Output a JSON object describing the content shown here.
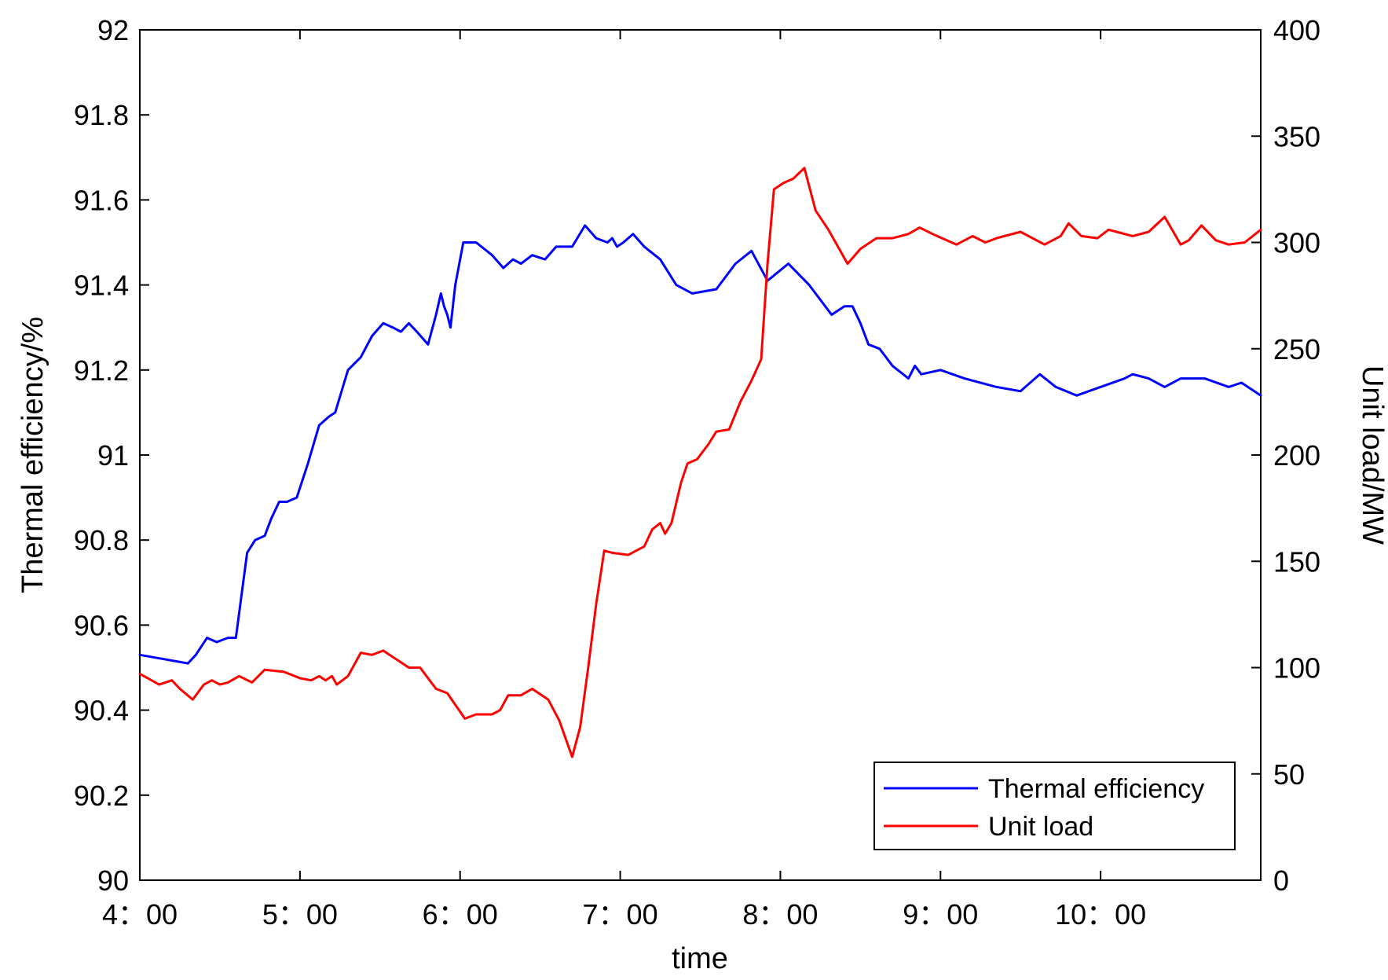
{
  "chart_data": {
    "type": "line",
    "xlabel": "time",
    "ylabel_left": "Thermal efficiency/%",
    "ylabel_right": "Unit load/MW",
    "xlim": [
      4.0,
      11.0
    ],
    "ylim_left": [
      90,
      92
    ],
    "ylim_right": [
      0,
      400
    ],
    "x_ticks": [
      4,
      5,
      6,
      7,
      8,
      9,
      10
    ],
    "x_tick_labels": [
      "4：00",
      "5：00",
      "6：00",
      "7：00",
      "8：00",
      "9：00",
      "10：00"
    ],
    "y_left_ticks": [
      90,
      90.2,
      90.4,
      90.6,
      90.8,
      91,
      91.2,
      91.4,
      91.6,
      91.8,
      92
    ],
    "y_left_tick_labels": [
      "90",
      "90.2",
      "90.4",
      "90.6",
      "90.8",
      "91",
      "91.2",
      "91.4",
      "91.6",
      "91.8",
      "92"
    ],
    "y_right_ticks": [
      0,
      50,
      100,
      150,
      200,
      250,
      300,
      350,
      400
    ],
    "y_right_tick_labels": [
      "0",
      "50",
      "100",
      "150",
      "200",
      "250",
      "300",
      "350",
      "400"
    ],
    "grid": false,
    "legend_position": "bottom-right",
    "series": [
      {
        "name": "Thermal efficiency",
        "axis": "left",
        "color": "#0000ff",
        "points": [
          [
            4.0,
            90.53
          ],
          [
            4.15,
            90.52
          ],
          [
            4.3,
            90.51
          ],
          [
            4.35,
            90.53
          ],
          [
            4.42,
            90.57
          ],
          [
            4.48,
            90.56
          ],
          [
            4.55,
            90.57
          ],
          [
            4.6,
            90.57
          ],
          [
            4.67,
            90.77
          ],
          [
            4.72,
            90.8
          ],
          [
            4.78,
            90.81
          ],
          [
            4.82,
            90.85
          ],
          [
            4.87,
            90.89
          ],
          [
            4.92,
            90.89
          ],
          [
            4.98,
            90.9
          ],
          [
            5.05,
            90.98
          ],
          [
            5.12,
            91.07
          ],
          [
            5.18,
            91.09
          ],
          [
            5.22,
            91.1
          ],
          [
            5.3,
            91.2
          ],
          [
            5.38,
            91.23
          ],
          [
            5.45,
            91.28
          ],
          [
            5.52,
            91.31
          ],
          [
            5.58,
            91.3
          ],
          [
            5.63,
            91.29
          ],
          [
            5.68,
            91.31
          ],
          [
            5.73,
            91.29
          ],
          [
            5.8,
            91.26
          ],
          [
            5.85,
            91.33
          ],
          [
            5.88,
            91.38
          ],
          [
            5.9,
            91.35
          ],
          [
            5.92,
            91.33
          ],
          [
            5.94,
            91.3
          ],
          [
            5.97,
            91.4
          ],
          [
            6.02,
            91.5
          ],
          [
            6.1,
            91.5
          ],
          [
            6.2,
            91.47
          ],
          [
            6.27,
            91.44
          ],
          [
            6.33,
            91.46
          ],
          [
            6.38,
            91.45
          ],
          [
            6.45,
            91.47
          ],
          [
            6.53,
            91.46
          ],
          [
            6.6,
            91.49
          ],
          [
            6.7,
            91.49
          ],
          [
            6.78,
            91.54
          ],
          [
            6.85,
            91.51
          ],
          [
            6.92,
            91.5
          ],
          [
            6.95,
            91.51
          ],
          [
            6.98,
            91.49
          ],
          [
            7.02,
            91.5
          ],
          [
            7.08,
            91.52
          ],
          [
            7.15,
            91.49
          ],
          [
            7.25,
            91.46
          ],
          [
            7.35,
            91.4
          ],
          [
            7.45,
            91.38
          ],
          [
            7.6,
            91.39
          ],
          [
            7.72,
            91.45
          ],
          [
            7.82,
            91.48
          ],
          [
            7.92,
            91.41
          ],
          [
            8.05,
            91.45
          ],
          [
            8.18,
            91.4
          ],
          [
            8.32,
            91.33
          ],
          [
            8.4,
            91.35
          ],
          [
            8.45,
            91.35
          ],
          [
            8.5,
            91.31
          ],
          [
            8.55,
            91.26
          ],
          [
            8.62,
            91.25
          ],
          [
            8.7,
            91.21
          ],
          [
            8.8,
            91.18
          ],
          [
            8.84,
            91.21
          ],
          [
            8.88,
            91.19
          ],
          [
            9.0,
            91.2
          ],
          [
            9.15,
            91.18
          ],
          [
            9.35,
            91.16
          ],
          [
            9.5,
            91.15
          ],
          [
            9.62,
            91.19
          ],
          [
            9.72,
            91.16
          ],
          [
            9.85,
            91.14
          ],
          [
            10.0,
            91.16
          ],
          [
            10.15,
            91.18
          ],
          [
            10.2,
            91.19
          ],
          [
            10.3,
            91.18
          ],
          [
            10.4,
            91.16
          ],
          [
            10.5,
            91.18
          ],
          [
            10.65,
            91.18
          ],
          [
            10.8,
            91.16
          ],
          [
            10.88,
            91.17
          ],
          [
            11.0,
            91.14
          ]
        ]
      },
      {
        "name": "Unit load",
        "axis": "right",
        "color": "#ff0000",
        "points": [
          [
            4.0,
            97
          ],
          [
            4.05,
            95
          ],
          [
            4.12,
            92
          ],
          [
            4.2,
            94
          ],
          [
            4.25,
            90
          ],
          [
            4.33,
            85
          ],
          [
            4.4,
            92
          ],
          [
            4.45,
            94
          ],
          [
            4.5,
            92
          ],
          [
            4.55,
            93
          ],
          [
            4.62,
            96
          ],
          [
            4.7,
            93
          ],
          [
            4.78,
            99
          ],
          [
            4.9,
            98
          ],
          [
            5.0,
            95
          ],
          [
            5.07,
            94
          ],
          [
            5.12,
            96
          ],
          [
            5.16,
            94
          ],
          [
            5.2,
            96
          ],
          [
            5.23,
            92
          ],
          [
            5.3,
            96
          ],
          [
            5.38,
            107
          ],
          [
            5.45,
            106
          ],
          [
            5.52,
            108
          ],
          [
            5.6,
            104
          ],
          [
            5.68,
            100
          ],
          [
            5.75,
            100
          ],
          [
            5.85,
            90
          ],
          [
            5.92,
            88
          ],
          [
            6.03,
            76
          ],
          [
            6.1,
            78
          ],
          [
            6.2,
            78
          ],
          [
            6.25,
            80
          ],
          [
            6.3,
            87
          ],
          [
            6.38,
            87
          ],
          [
            6.45,
            90
          ],
          [
            6.55,
            85
          ],
          [
            6.62,
            75
          ],
          [
            6.7,
            58
          ],
          [
            6.75,
            72
          ],
          [
            6.8,
            100
          ],
          [
            6.85,
            130
          ],
          [
            6.9,
            155
          ],
          [
            6.95,
            154
          ],
          [
            7.05,
            153
          ],
          [
            7.15,
            157
          ],
          [
            7.2,
            165
          ],
          [
            7.25,
            168
          ],
          [
            7.28,
            163
          ],
          [
            7.32,
            168
          ],
          [
            7.38,
            187
          ],
          [
            7.42,
            196
          ],
          [
            7.48,
            198
          ],
          [
            7.55,
            205
          ],
          [
            7.6,
            211
          ],
          [
            7.68,
            212
          ],
          [
            7.75,
            225
          ],
          [
            7.82,
            235
          ],
          [
            7.88,
            245
          ],
          [
            7.92,
            290
          ],
          [
            7.96,
            325
          ],
          [
            8.02,
            328
          ],
          [
            8.08,
            330
          ],
          [
            8.15,
            335
          ],
          [
            8.22,
            315
          ],
          [
            8.3,
            306
          ],
          [
            8.42,
            290
          ],
          [
            8.5,
            297
          ],
          [
            8.6,
            302
          ],
          [
            8.7,
            302
          ],
          [
            8.8,
            304
          ],
          [
            8.87,
            307
          ],
          [
            8.95,
            304
          ],
          [
            9.1,
            299
          ],
          [
            9.2,
            303
          ],
          [
            9.28,
            300
          ],
          [
            9.35,
            302
          ],
          [
            9.5,
            305
          ],
          [
            9.65,
            299
          ],
          [
            9.75,
            303
          ],
          [
            9.8,
            309
          ],
          [
            9.88,
            303
          ],
          [
            9.98,
            302
          ],
          [
            10.05,
            306
          ],
          [
            10.1,
            305
          ],
          [
            10.2,
            303
          ],
          [
            10.3,
            305
          ],
          [
            10.4,
            312
          ],
          [
            10.5,
            299
          ],
          [
            10.55,
            301
          ],
          [
            10.63,
            308
          ],
          [
            10.72,
            301
          ],
          [
            10.8,
            299
          ],
          [
            10.9,
            300
          ],
          [
            11.0,
            306
          ]
        ]
      }
    ]
  }
}
